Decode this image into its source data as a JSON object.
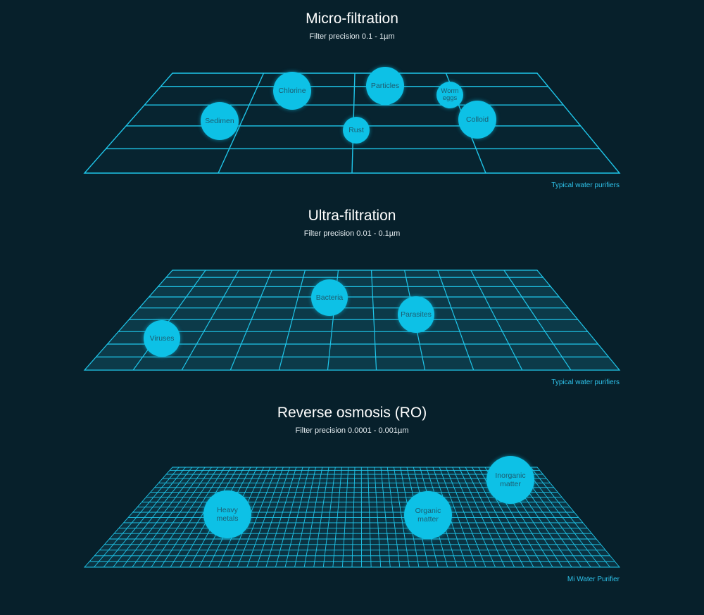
{
  "sections": [
    {
      "title": "Micro-filtration",
      "subtitle": "Filter precision 0.1 - 1µm",
      "caption": "Typical water purifiers",
      "particles": [
        {
          "label": "Sedimen"
        },
        {
          "label": "Chlorine"
        },
        {
          "label": "Particles"
        },
        {
          "label": "Worm\neggs"
        },
        {
          "label": "Colloid"
        },
        {
          "label": "Rust"
        }
      ]
    },
    {
      "title": "Ultra-filtration",
      "subtitle": "Filter precision 0.01 - 0.1µm",
      "caption": "Typical water purifiers",
      "particles": [
        {
          "label": "Bacteria"
        },
        {
          "label": "Parasites"
        },
        {
          "label": "Viruses"
        }
      ]
    },
    {
      "title": "Reverse osmosis (RO)",
      "subtitle": "Filter precision 0.0001 - 0.001µm",
      "caption": "Mi Water Purifier",
      "particles": [
        {
          "label": "Heavy\nmetals"
        },
        {
          "label": "Organic\nmatter"
        },
        {
          "label": "Inorganic\nmatter"
        }
      ]
    }
  ],
  "colors": {
    "background": "#07202b",
    "grid_line": "#1fc6ea",
    "particle": "#0dc1e6",
    "caption": "#2ec2ea"
  }
}
